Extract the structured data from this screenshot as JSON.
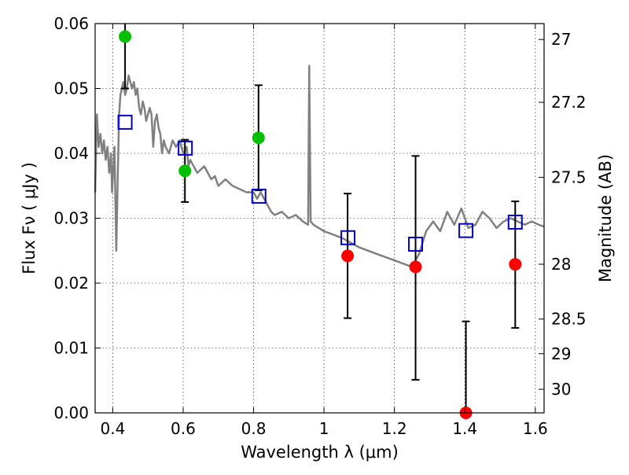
{
  "chart_data": {
    "type": "scatter",
    "xlabel": "Wavelength  λ (μm)",
    "ylabel": "Flux  Fν  ( μJy )",
    "y2label": "Magnitude (AB)",
    "xlim": [
      0.35,
      1.625
    ],
    "ylim": [
      0.0,
      0.06
    ],
    "x_ticks": [
      0.4,
      0.6,
      0.8,
      1.0,
      1.2,
      1.4,
      1.6
    ],
    "x_tick_labels": [
      "0.4",
      "0.6",
      "0.8",
      "1",
      "1.2",
      "1.4",
      "1.6"
    ],
    "y_ticks": [
      0.0,
      0.01,
      0.02,
      0.03,
      0.04,
      0.05,
      0.06
    ],
    "y_tick_labels": [
      "0.00",
      "0.01",
      "0.02",
      "0.03",
      "0.04",
      "0.05",
      "0.06"
    ],
    "magnitude_ticks": [
      {
        "label": "27",
        "mag": 27.0
      },
      {
        "label": "27.2",
        "mag": 27.2
      },
      {
        "label": "27.5",
        "mag": 27.5
      },
      {
        "label": "28",
        "mag": 28.0
      },
      {
        "label": "28.5",
        "mag": 28.5
      },
      {
        "label": "29",
        "mag": 29.0
      },
      {
        "label": "30",
        "mag": 30.0
      }
    ],
    "grid": true,
    "colors": {
      "detection": "#00c000",
      "upper_limit": "#ff0000",
      "model_band": "#0000cc",
      "spectrum": "#808080",
      "errorbar": "#000000"
    },
    "series": [
      {
        "marker": "circle-green",
        "points": [
          {
            "x": 0.435,
            "y": 0.058,
            "yerr_low": 0.008,
            "yerr_high": 0.012
          },
          {
            "x": 0.605,
            "y": 0.0373,
            "yerr_low": 0.0048,
            "yerr_high": 0.0048
          },
          {
            "x": 0.814,
            "y": 0.0424,
            "yerr_low": 0.0081,
            "yerr_high": 0.0081
          }
        ]
      },
      {
        "marker": "circle-red",
        "points": [
          {
            "x": 1.067,
            "y": 0.0242,
            "yerr_low": 0.0096,
            "yerr_high": 0.0096
          },
          {
            "x": 1.26,
            "y": 0.0225,
            "yerr_low": 0.0174,
            "yerr_high": 0.0171
          },
          {
            "x": 1.403,
            "y": 0.0,
            "yerr_low": 0.0,
            "yerr_high": 0.0141
          },
          {
            "x": 1.543,
            "y": 0.0229,
            "yerr_low": 0.0098,
            "yerr_high": 0.0097
          }
        ]
      },
      {
        "marker": "square-blue-open",
        "points": [
          {
            "x": 0.435,
            "y": 0.0448
          },
          {
            "x": 0.606,
            "y": 0.0408
          },
          {
            "x": 0.815,
            "y": 0.0334
          },
          {
            "x": 1.068,
            "y": 0.027
          },
          {
            "x": 1.26,
            "y": 0.026
          },
          {
            "x": 1.403,
            "y": 0.0281
          },
          {
            "x": 1.543,
            "y": 0.0294
          }
        ]
      },
      {
        "marker": "line-gray",
        "points": [
          [
            0.35,
            0.034
          ],
          [
            0.355,
            0.046
          ],
          [
            0.36,
            0.041
          ],
          [
            0.365,
            0.043
          ],
          [
            0.37,
            0.04
          ],
          [
            0.375,
            0.042
          ],
          [
            0.38,
            0.039
          ],
          [
            0.385,
            0.041
          ],
          [
            0.39,
            0.037
          ],
          [
            0.395,
            0.04
          ],
          [
            0.398,
            0.034
          ],
          [
            0.402,
            0.038
          ],
          [
            0.405,
            0.041
          ],
          [
            0.41,
            0.025
          ],
          [
            0.414,
            0.036
          ],
          [
            0.418,
            0.046
          ],
          [
            0.422,
            0.049
          ],
          [
            0.426,
            0.05
          ],
          [
            0.43,
            0.051
          ],
          [
            0.435,
            0.049
          ],
          [
            0.44,
            0.05
          ],
          [
            0.445,
            0.052
          ],
          [
            0.45,
            0.051
          ],
          [
            0.455,
            0.05
          ],
          [
            0.46,
            0.051
          ],
          [
            0.465,
            0.049
          ],
          [
            0.47,
            0.05
          ],
          [
            0.475,
            0.047
          ],
          [
            0.48,
            0.046
          ],
          [
            0.485,
            0.048
          ],
          [
            0.49,
            0.047
          ],
          [
            0.495,
            0.045
          ],
          [
            0.5,
            0.046
          ],
          [
            0.505,
            0.047
          ],
          [
            0.51,
            0.046
          ],
          [
            0.515,
            0.041
          ],
          [
            0.52,
            0.045
          ],
          [
            0.525,
            0.046
          ],
          [
            0.53,
            0.044
          ],
          [
            0.535,
            0.043
          ],
          [
            0.54,
            0.04
          ],
          [
            0.545,
            0.042
          ],
          [
            0.55,
            0.041
          ],
          [
            0.56,
            0.04
          ],
          [
            0.57,
            0.042
          ],
          [
            0.58,
            0.041
          ],
          [
            0.59,
            0.042
          ],
          [
            0.6,
            0.04
          ],
          [
            0.61,
            0.041
          ],
          [
            0.615,
            0.038
          ],
          [
            0.62,
            0.039
          ],
          [
            0.64,
            0.037
          ],
          [
            0.66,
            0.038
          ],
          [
            0.68,
            0.036
          ],
          [
            0.69,
            0.0365
          ],
          [
            0.7,
            0.035
          ],
          [
            0.72,
            0.036
          ],
          [
            0.74,
            0.035
          ],
          [
            0.76,
            0.0345
          ],
          [
            0.78,
            0.034
          ],
          [
            0.8,
            0.034
          ],
          [
            0.81,
            0.033
          ],
          [
            0.82,
            0.034
          ],
          [
            0.83,
            0.033
          ],
          [
            0.84,
            0.032
          ],
          [
            0.85,
            0.031
          ],
          [
            0.86,
            0.0305
          ],
          [
            0.88,
            0.031
          ],
          [
            0.9,
            0.03
          ],
          [
            0.92,
            0.0305
          ],
          [
            0.94,
            0.0295
          ],
          [
            0.955,
            0.029
          ],
          [
            0.958,
            0.0535
          ],
          [
            0.962,
            0.0295
          ],
          [
            0.97,
            0.029
          ],
          [
            1.0,
            0.028
          ],
          [
            1.05,
            0.027
          ],
          [
            1.1,
            0.0255
          ],
          [
            1.15,
            0.0245
          ],
          [
            1.2,
            0.0235
          ],
          [
            1.25,
            0.0225
          ],
          [
            1.27,
            0.0245
          ],
          [
            1.29,
            0.028
          ],
          [
            1.31,
            0.0295
          ],
          [
            1.33,
            0.028
          ],
          [
            1.35,
            0.031
          ],
          [
            1.37,
            0.029
          ],
          [
            1.39,
            0.0315
          ],
          [
            1.41,
            0.0285
          ],
          [
            1.43,
            0.029
          ],
          [
            1.45,
            0.031
          ],
          [
            1.47,
            0.03
          ],
          [
            1.49,
            0.0285
          ],
          [
            1.51,
            0.0295
          ],
          [
            1.53,
            0.03
          ],
          [
            1.55,
            0.0295
          ],
          [
            1.57,
            0.029
          ],
          [
            1.59,
            0.0295
          ],
          [
            1.61,
            0.029
          ],
          [
            1.625,
            0.0287
          ]
        ]
      }
    ]
  }
}
